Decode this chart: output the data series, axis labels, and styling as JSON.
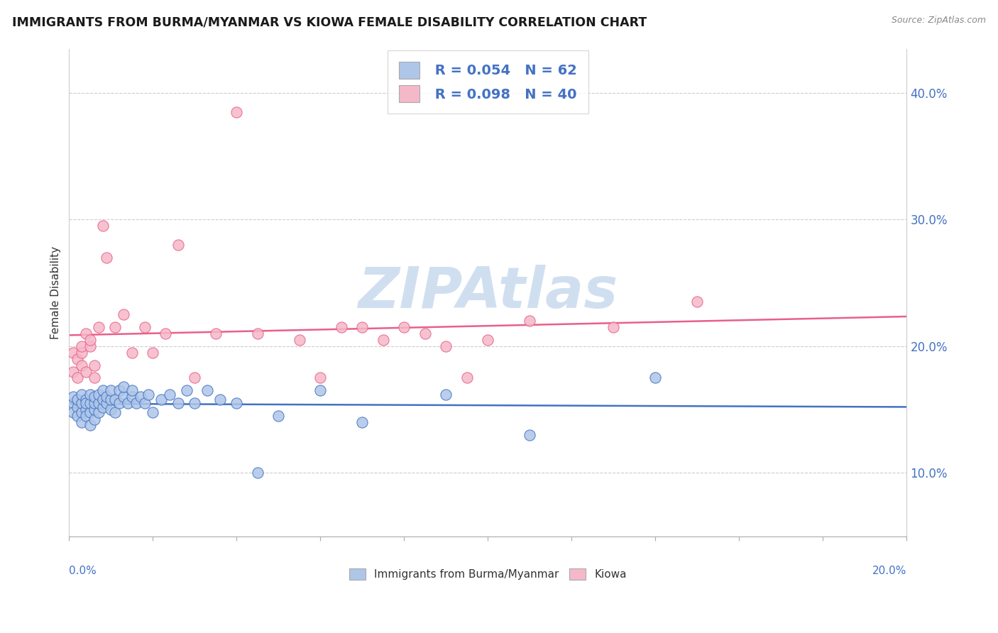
{
  "title": "IMMIGRANTS FROM BURMA/MYANMAR VS KIOWA FEMALE DISABILITY CORRELATION CHART",
  "source_text": "Source: ZipAtlas.com",
  "ylabel": "Female Disability",
  "xlim": [
    0.0,
    0.2
  ],
  "ylim": [
    0.05,
    0.435
  ],
  "y_ticks": [
    0.1,
    0.2,
    0.3,
    0.4
  ],
  "y_tick_labels": [
    "10.0%",
    "20.0%",
    "30.0%",
    "40.0%"
  ],
  "x_ticks": [
    0.0,
    0.02,
    0.04,
    0.06,
    0.08,
    0.1,
    0.12,
    0.14,
    0.16,
    0.18,
    0.2
  ],
  "legend_R1": "R = 0.054",
  "legend_N1": "N = 62",
  "legend_R2": "R = 0.098",
  "legend_N2": "N = 40",
  "color_blue": "#aec6e8",
  "color_pink": "#f5b8c8",
  "line_color_blue": "#4472c4",
  "line_color_pink": "#e8608a",
  "watermark_color": "#d0dff0",
  "background_color": "#ffffff",
  "blue_scatter_x": [
    0.001,
    0.001,
    0.001,
    0.002,
    0.002,
    0.002,
    0.003,
    0.003,
    0.003,
    0.003,
    0.004,
    0.004,
    0.004,
    0.004,
    0.005,
    0.005,
    0.005,
    0.005,
    0.006,
    0.006,
    0.006,
    0.006,
    0.007,
    0.007,
    0.007,
    0.008,
    0.008,
    0.008,
    0.009,
    0.009,
    0.01,
    0.01,
    0.01,
    0.011,
    0.011,
    0.012,
    0.012,
    0.013,
    0.013,
    0.014,
    0.015,
    0.015,
    0.016,
    0.017,
    0.018,
    0.019,
    0.02,
    0.022,
    0.024,
    0.026,
    0.028,
    0.03,
    0.033,
    0.036,
    0.04,
    0.045,
    0.05,
    0.06,
    0.07,
    0.09,
    0.11,
    0.14
  ],
  "blue_scatter_y": [
    0.155,
    0.16,
    0.148,
    0.152,
    0.158,
    0.145,
    0.148,
    0.155,
    0.162,
    0.14,
    0.15,
    0.158,
    0.145,
    0.155,
    0.138,
    0.148,
    0.155,
    0.162,
    0.142,
    0.15,
    0.155,
    0.16,
    0.148,
    0.155,
    0.162,
    0.152,
    0.158,
    0.165,
    0.155,
    0.16,
    0.15,
    0.158,
    0.165,
    0.148,
    0.158,
    0.155,
    0.165,
    0.16,
    0.168,
    0.155,
    0.16,
    0.165,
    0.155,
    0.16,
    0.155,
    0.162,
    0.148,
    0.158,
    0.162,
    0.155,
    0.165,
    0.155,
    0.165,
    0.158,
    0.155,
    0.1,
    0.145,
    0.165,
    0.14,
    0.162,
    0.13,
    0.175
  ],
  "pink_scatter_x": [
    0.001,
    0.001,
    0.002,
    0.002,
    0.003,
    0.003,
    0.003,
    0.004,
    0.004,
    0.005,
    0.005,
    0.006,
    0.006,
    0.007,
    0.008,
    0.009,
    0.011,
    0.013,
    0.015,
    0.018,
    0.02,
    0.023,
    0.026,
    0.03,
    0.035,
    0.04,
    0.045,
    0.055,
    0.065,
    0.075,
    0.08,
    0.09,
    0.1,
    0.11,
    0.13,
    0.15,
    0.06,
    0.07,
    0.085,
    0.095
  ],
  "pink_scatter_y": [
    0.195,
    0.18,
    0.19,
    0.175,
    0.195,
    0.2,
    0.185,
    0.18,
    0.21,
    0.2,
    0.205,
    0.175,
    0.185,
    0.215,
    0.295,
    0.27,
    0.215,
    0.225,
    0.195,
    0.215,
    0.195,
    0.21,
    0.28,
    0.175,
    0.21,
    0.385,
    0.21,
    0.205,
    0.215,
    0.205,
    0.215,
    0.2,
    0.205,
    0.22,
    0.215,
    0.235,
    0.175,
    0.215,
    0.21,
    0.175
  ]
}
